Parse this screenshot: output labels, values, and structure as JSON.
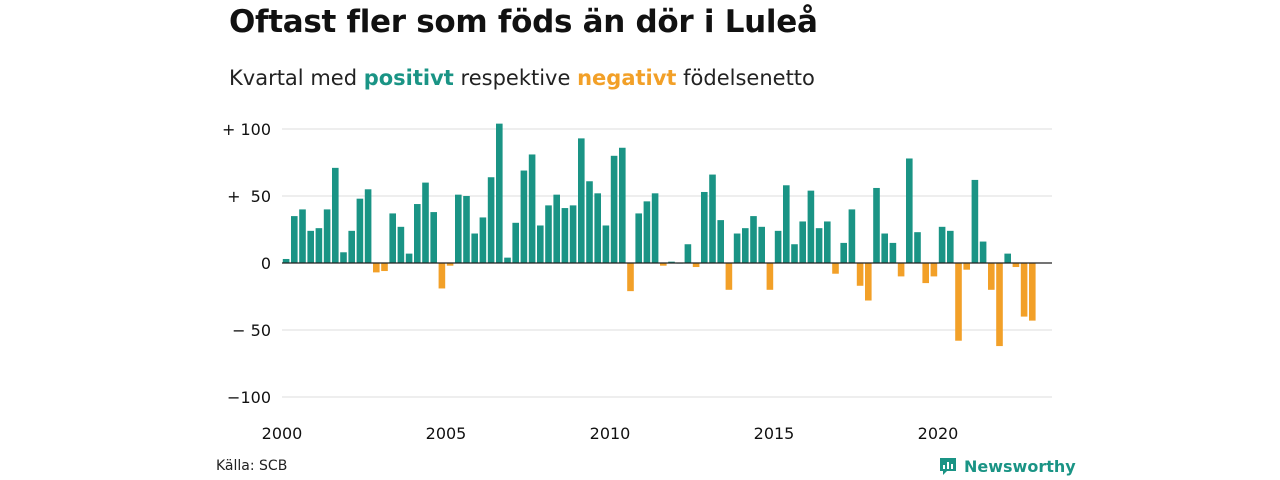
{
  "title": "Oftast fler som föds än dör i Luleå",
  "subtitle": {
    "prefix": "Kvartal med",
    "positive_word": "positivt",
    "middle": "respektive",
    "negative_word": "negativt",
    "suffix": "födelsenetto"
  },
  "source": "Källa: SCB",
  "brand": "Newsworthy",
  "colors": {
    "positive": "#1a9485",
    "negative": "#f2a028",
    "grid": "#dddddd",
    "zero": "#222222"
  },
  "chart_data": {
    "type": "bar",
    "period": "quarterly",
    "x_start": "2000 Q1",
    "x_ticks": [
      "2000",
      "2005",
      "2010",
      "2015",
      "2020"
    ],
    "y_ticks": [
      {
        "value": 100,
        "label": "+ 100"
      },
      {
        "value": 50,
        "label": "+  50"
      },
      {
        "value": 0,
        "label": "0"
      },
      {
        "value": -50,
        "label": "− 50"
      },
      {
        "value": -100,
        "label": "−100"
      }
    ],
    "ylim": [
      -100,
      100
    ],
    "grid": true,
    "values": [
      3,
      35,
      40,
      24,
      26,
      40,
      71,
      8,
      24,
      48,
      55,
      -7,
      -6,
      37,
      27,
      7,
      44,
      60,
      38,
      -19,
      -2,
      51,
      50,
      22,
      34,
      64,
      104,
      4,
      30,
      69,
      81,
      28,
      43,
      51,
      41,
      43,
      93,
      61,
      52,
      28,
      80,
      86,
      -21,
      37,
      46,
      52,
      -2,
      1,
      0,
      14,
      -3,
      53,
      66,
      32,
      -20,
      22,
      26,
      35,
      27,
      -20,
      24,
      58,
      14,
      31,
      54,
      26,
      31,
      -8,
      15,
      40,
      -17,
      -28,
      56,
      22,
      15,
      -10,
      78,
      23,
      -15,
      -10,
      27,
      24,
      -58,
      -5,
      62,
      16,
      -20,
      -62,
      7,
      -3,
      -40,
      -43
    ]
  }
}
